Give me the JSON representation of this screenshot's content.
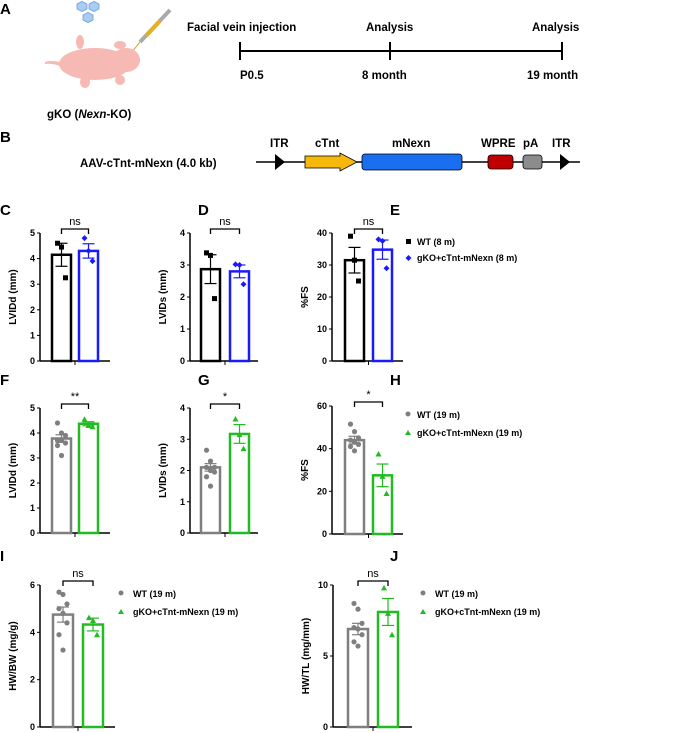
{
  "panels": {
    "A": "A",
    "B": "B",
    "C": "C",
    "D": "D",
    "E": "E",
    "F": "F",
    "G": "G",
    "H": "H",
    "I": "I",
    "J": "J"
  },
  "timeline": {
    "mouse_label_pre": "gKO (",
    "mouse_label_italic": "Nexn",
    "mouse_label_post": "-KO)",
    "events": [
      "Facial vein injection",
      "Analysis",
      "Analysis"
    ],
    "times": [
      "P0.5",
      "8 month",
      "19 month"
    ]
  },
  "construct": {
    "name": "AAV-cTnt-mNexn (4.0 kb)",
    "elements": [
      "ITR",
      "cTnt",
      "mNexn",
      "WPRE",
      "pA",
      "ITR"
    ],
    "colors": {
      "cTnt": "#f6b80a",
      "mNexn": "#1a6ff0",
      "WPRE": "#c00000",
      "pA": "#8c8c8c"
    }
  },
  "legends": {
    "m8": {
      "wt": "WT (8 m)",
      "ko": "gKO+cTnt-mNexn (8 m)"
    },
    "m19": {
      "wt": "WT (19 m)",
      "ko": "gKO+cTnt-mNexn (19 m)"
    }
  },
  "chart_data": [
    {
      "id": "C",
      "type": "bar",
      "ylabel": "LVIDd (mm)",
      "ylim": [
        0,
        5
      ],
      "ticks": [
        "0",
        "1",
        "2",
        "3",
        "4",
        "5"
      ],
      "sig": "ns",
      "groups": [
        {
          "name": "WT (8 m)",
          "mean": 4.15,
          "sem": 0.45,
          "points": [
            4.6,
            4.45,
            3.25
          ],
          "color": "#000000",
          "marker": "square"
        },
        {
          "name": "gKO+cTnt-mNexn (8 m)",
          "mean": 4.3,
          "sem": 0.28,
          "points": [
            4.8,
            4.3,
            3.9
          ],
          "color": "#1a1aff",
          "marker": "diamond"
        }
      ]
    },
    {
      "id": "D",
      "type": "bar",
      "ylabel": "LVIDs (mm)",
      "ylim": [
        0,
        4
      ],
      "ticks": [
        "0",
        "1",
        "2",
        "3",
        "4"
      ],
      "sig": "ns",
      "groups": [
        {
          "name": "WT (8 m)",
          "mean": 2.87,
          "sem": 0.45,
          "points": [
            3.38,
            3.3,
            1.95
          ],
          "color": "#000000",
          "marker": "square"
        },
        {
          "name": "gKO+cTnt-mNexn (8 m)",
          "mean": 2.8,
          "sem": 0.2,
          "points": [
            3.02,
            3.0,
            2.4
          ],
          "color": "#1a1aff",
          "marker": "diamond"
        }
      ]
    },
    {
      "id": "E",
      "type": "bar",
      "ylabel": "%FS",
      "ylim": [
        0,
        40
      ],
      "ticks": [
        "0",
        "10",
        "20",
        "30",
        "40"
      ],
      "sig": "ns",
      "groups": [
        {
          "name": "WT (8 m)",
          "mean": 31.5,
          "sem": 4.0,
          "points": [
            39,
            31.5,
            25
          ],
          "color": "#000000",
          "marker": "square"
        },
        {
          "name": "gKO+cTnt-mNexn (8 m)",
          "mean": 34.8,
          "sem": 3.0,
          "points": [
            38,
            37.5,
            29
          ],
          "color": "#1a1aff",
          "marker": "diamond"
        }
      ]
    },
    {
      "id": "F",
      "type": "bar",
      "ylabel": "LVIDd (mm)",
      "ylim": [
        0,
        5
      ],
      "ticks": [
        "0",
        "1",
        "2",
        "3",
        "4",
        "5"
      ],
      "sig": "**",
      "groups": [
        {
          "name": "WT (19 m)",
          "mean": 3.78,
          "sem": 0.15,
          "points": [
            4.4,
            4.0,
            3.9,
            3.7,
            3.7,
            3.6,
            3.5,
            3.1
          ],
          "color": "#7f7f7f",
          "marker": "circle"
        },
        {
          "name": "gKO+cTnt-mNexn (19 m)",
          "mean": 4.37,
          "sem": 0.08,
          "points": [
            4.55,
            4.3,
            4.25
          ],
          "color": "#22bb22",
          "marker": "triangle"
        }
      ]
    },
    {
      "id": "G",
      "type": "bar",
      "ylabel": "LVIDs (mm)",
      "ylim": [
        0,
        4
      ],
      "ticks": [
        "0",
        "1",
        "2",
        "3",
        "4"
      ],
      "sig": "*",
      "groups": [
        {
          "name": "WT (19 m)",
          "mean": 2.1,
          "sem": 0.12,
          "points": [
            2.65,
            2.3,
            2.1,
            2.1,
            2.0,
            1.95,
            1.8,
            1.5
          ],
          "color": "#7f7f7f",
          "marker": "circle"
        },
        {
          "name": "gKO+cTnt-mNexn (19 m)",
          "mean": 3.17,
          "sem": 0.3,
          "points": [
            3.65,
            3.15,
            2.7
          ],
          "color": "#22bb22",
          "marker": "triangle"
        }
      ]
    },
    {
      "id": "H",
      "type": "bar",
      "ylabel": "%FS",
      "ylim": [
        0,
        60
      ],
      "ticks": [
        "0",
        "20",
        "40",
        "60"
      ],
      "sig": "*",
      "groups": [
        {
          "name": "WT (19 m)",
          "mean": 44,
          "sem": 1.8,
          "points": [
            51.5,
            48,
            45,
            44,
            43,
            42,
            41,
            39
          ],
          "color": "#7f7f7f",
          "marker": "circle"
        },
        {
          "name": "gKO+cTnt-mNexn (19 m)",
          "mean": 27.5,
          "sem": 5.3,
          "points": [
            37.5,
            27,
            19
          ],
          "color": "#22bb22",
          "marker": "triangle"
        }
      ]
    },
    {
      "id": "I",
      "type": "bar",
      "ylabel": "HW/BW (mg/g)",
      "ylim": [
        0,
        6
      ],
      "ticks": [
        "0",
        "2",
        "4",
        "6"
      ],
      "sig": "ns",
      "groups": [
        {
          "name": "WT (19 m)",
          "mean": 4.75,
          "sem": 0.32,
          "points": [
            5.7,
            5.6,
            5.2,
            5.0,
            4.8,
            4.4,
            3.9,
            3.25
          ],
          "color": "#7f7f7f",
          "marker": "circle"
        },
        {
          "name": "gKO+cTnt-mNexn (19 m)",
          "mean": 4.33,
          "sem": 0.27,
          "points": [
            4.62,
            4.5,
            3.9
          ],
          "color": "#22bb22",
          "marker": "triangle"
        }
      ]
    },
    {
      "id": "J",
      "type": "bar",
      "ylabel": "HW/TL (mg/mm)",
      "ylim": [
        0,
        10
      ],
      "ticks": [
        "0",
        "5",
        "10"
      ],
      "sig": "ns",
      "groups": [
        {
          "name": "WT (19 m)",
          "mean": 6.9,
          "sem": 0.4,
          "points": [
            8.7,
            8.3,
            7.3,
            7.0,
            6.9,
            6.5,
            6.0,
            5.7
          ],
          "color": "#7f7f7f",
          "marker": "circle"
        },
        {
          "name": "gKO+cTnt-mNexn (19 m)",
          "mean": 8.1,
          "sem": 0.95,
          "points": [
            9.8,
            8.0,
            6.5
          ],
          "color": "#22bb22",
          "marker": "triangle"
        }
      ]
    }
  ]
}
